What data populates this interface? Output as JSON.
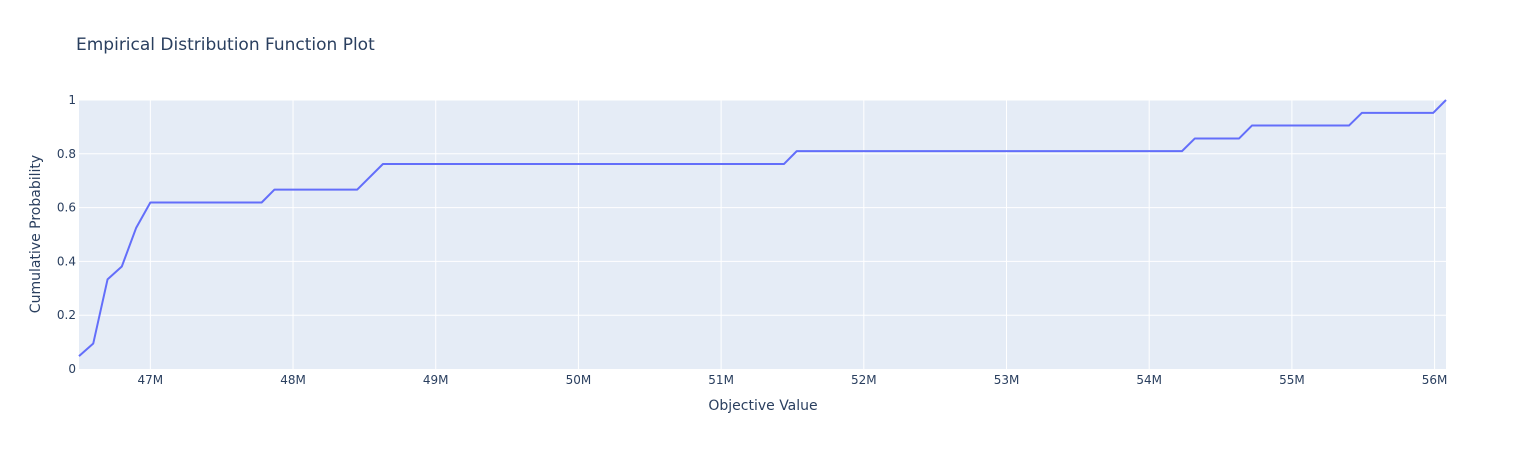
{
  "chart_data": {
    "type": "line",
    "title": "Empirical Distribution Function Plot",
    "xlabel": "Objective Value",
    "ylabel": "Cumulative Probability",
    "xlim": [
      46500000,
      56080000
    ],
    "ylim": [
      0,
      1
    ],
    "grid": true,
    "legend": "none",
    "line_color": "#636efa",
    "plot_background": "#e5ecf6",
    "grid_color": "#ffffff",
    "x_ticks": [
      {
        "value": 47000000,
        "label": "47M"
      },
      {
        "value": 48000000,
        "label": "48M"
      },
      {
        "value": 49000000,
        "label": "49M"
      },
      {
        "value": 50000000,
        "label": "50M"
      },
      {
        "value": 51000000,
        "label": "51M"
      },
      {
        "value": 52000000,
        "label": "52M"
      },
      {
        "value": 53000000,
        "label": "53M"
      },
      {
        "value": 54000000,
        "label": "54M"
      },
      {
        "value": 55000000,
        "label": "55M"
      },
      {
        "value": 56000000,
        "label": "56M"
      }
    ],
    "y_ticks": [
      {
        "value": 0,
        "label": "0"
      },
      {
        "value": 0.2,
        "label": "0.2"
      },
      {
        "value": 0.4,
        "label": "0.4"
      },
      {
        "value": 0.6,
        "label": "0.6"
      },
      {
        "value": 0.8,
        "label": "0.8"
      },
      {
        "value": 1,
        "label": "1"
      }
    ],
    "series": [
      {
        "x": [
          46500000,
          46600000,
          46700000,
          46800000,
          46900000,
          47000000,
          47780000,
          47870000,
          48450000,
          48630000,
          51440000,
          51530000,
          54230000,
          54320000,
          54630000,
          54720000,
          55400000,
          55490000,
          55990000,
          56080000
        ],
        "y": [
          0.048,
          0.095,
          0.333,
          0.381,
          0.524,
          0.619,
          0.619,
          0.667,
          0.667,
          0.762,
          0.762,
          0.81,
          0.81,
          0.857,
          0.857,
          0.905,
          0.905,
          0.952,
          0.952,
          1.0
        ]
      }
    ]
  }
}
